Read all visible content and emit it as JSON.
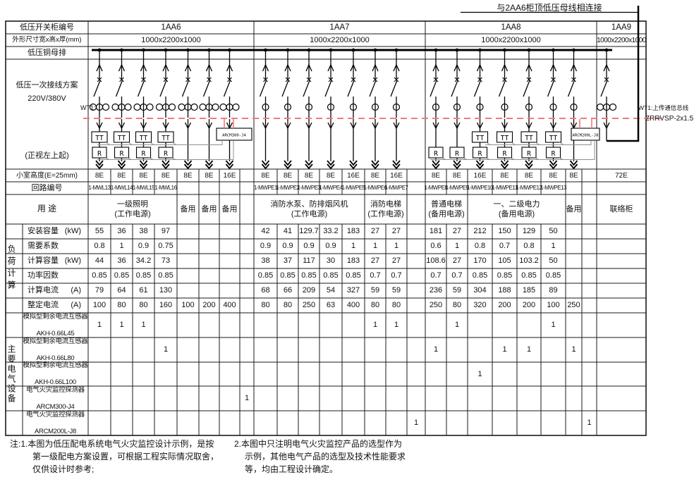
{
  "annotations": {
    "top_right": "与2AA6柜顶低压母线相连接",
    "wt1_left": "WT1:",
    "wt1_right_line1": "WT1:上传通信总线",
    "wt1_right_line2": "ZRRVSP-2x1.5"
  },
  "row_labels": {
    "cabinet_no": "低压开关柜编号",
    "dimensions": "外形尺寸宽x高x厚(mm)",
    "busbar": "低压铜母排",
    "scheme_line1": "低压一次接线方案",
    "scheme_line2": "220V/380V",
    "scheme_line3": "(正视左上起)",
    "cell_height": "小室高度(E=25mm)",
    "circuit_no": "回路编号",
    "purpose": "用  途",
    "load_group": "负荷计算",
    "equipment_group": "主要电气设备"
  },
  "symbols": {
    "tt": "TT",
    "r": "R"
  },
  "load_rows": [
    {
      "label": "安装容量",
      "unit": "(kW)"
    },
    {
      "label": "需要系数",
      "unit": ""
    },
    {
      "label": "计算容量",
      "unit": "(kW)"
    },
    {
      "label": "功率因数",
      "unit": ""
    },
    {
      "label": "计算电流",
      "unit": "(A)"
    },
    {
      "label": "整定电流",
      "unit": "(A)"
    }
  ],
  "equipment_rows": [
    {
      "name": "模拟型剩余电流互感器",
      "model": "AKH-0.66L45"
    },
    {
      "name": "模拟型剩余电流互感器",
      "model": "AKH-0.66L80"
    },
    {
      "name": "模拟型剩余电流互感器",
      "model": "AKH-0.66L100"
    },
    {
      "name": "电气火灾监控探测器",
      "model": "ARCM300-J4"
    },
    {
      "name": "电气火灾监控探测器",
      "model": "ARCM200L-J8"
    }
  ],
  "cabinets": [
    {
      "id": "1AA6",
      "size": "1000x2200x1000",
      "monitor_label": "ARCM300-J4",
      "purposes": [
        {
          "span": 4,
          "lines": [
            "一级照明",
            "(工作电源)"
          ]
        },
        {
          "span": 1,
          "lines": [
            "备用"
          ]
        },
        {
          "span": 1,
          "lines": [
            "备用"
          ]
        },
        {
          "span": 1,
          "lines": [
            "备用"
          ]
        }
      ],
      "circuits": [
        {
          "h": "8E",
          "no": "1-MWL13",
          "sym": "ct3-ttr",
          "vals": [
            "55",
            "0.8",
            "44",
            "0.85",
            "79",
            "100"
          ],
          "marks": [
            1,
            0,
            0,
            0,
            0
          ]
        },
        {
          "h": "8E",
          "no": "1-MWL14",
          "sym": "ct3-ttr",
          "vals": [
            "36",
            "1",
            "36",
            "0.85",
            "64",
            "80"
          ],
          "marks": [
            1,
            0,
            0,
            0,
            0
          ]
        },
        {
          "h": "8E",
          "no": "1-MWL15",
          "sym": "ct3-ttr",
          "vals": [
            "38",
            "0.9",
            "34.2",
            "0.85",
            "61",
            "80"
          ],
          "marks": [
            1,
            0,
            0,
            0,
            0
          ]
        },
        {
          "h": "8E",
          "no": "1-MWL16",
          "sym": "ct3-ttr",
          "vals": [
            "97",
            "0.75",
            "73",
            "0.85",
            "130",
            "160"
          ],
          "marks": [
            0,
            1,
            0,
            0,
            0
          ]
        },
        {
          "h": "8E",
          "no": "",
          "sym": "ct3",
          "vals": [
            "",
            "",
            "",
            "",
            "",
            "100"
          ],
          "marks": [
            0,
            0,
            0,
            0,
            0
          ]
        },
        {
          "h": "8E",
          "no": "",
          "sym": "ct3",
          "vals": [
            "",
            "",
            "",
            "",
            "",
            "200"
          ],
          "marks": [
            0,
            0,
            0,
            0,
            0
          ]
        },
        {
          "h": "16E",
          "no": "",
          "sym": "ct3",
          "vals": [
            "",
            "",
            "",
            "",
            "",
            "400"
          ],
          "marks": [
            0,
            0,
            0,
            0,
            0
          ]
        }
      ],
      "end_marks": [
        0,
        0,
        0,
        1,
        0
      ]
    },
    {
      "id": "1AA7",
      "size": "1000x2200x1000",
      "monitor_label": "",
      "purposes": [
        {
          "span": 5,
          "lines": [
            "消防水泵、防排烟风机",
            "(工作电源)"
          ]
        },
        {
          "span": 2,
          "lines": [
            "消防电梯",
            "(工作电源)"
          ]
        }
      ],
      "circuits": [
        {
          "h": "8E",
          "no": "1-MWPE1",
          "sym": "plain",
          "vals": [
            "42",
            "0.9",
            "38",
            "0.85",
            "68",
            "80"
          ],
          "marks": [
            0,
            0,
            0,
            0,
            0
          ]
        },
        {
          "h": "8E",
          "no": "1-MWPE2",
          "sym": "plain",
          "vals": [
            "41",
            "0.9",
            "37",
            "0.85",
            "66",
            "80"
          ],
          "marks": [
            0,
            0,
            0,
            0,
            0
          ]
        },
        {
          "h": "8E",
          "no": "1-MWPE3",
          "sym": "plain",
          "vals": [
            "129.7",
            "0.9",
            "117",
            "0.85",
            "209",
            "250"
          ],
          "marks": [
            0,
            0,
            0,
            0,
            0
          ]
        },
        {
          "h": "8E",
          "no": "1-MWPE4",
          "sym": "plain",
          "vals": [
            "33.2",
            "0.9",
            "30",
            "0.85",
            "54",
            "63"
          ],
          "marks": [
            0,
            0,
            0,
            0,
            0
          ]
        },
        {
          "h": "16E",
          "no": "1-MWPE5",
          "sym": "plain",
          "vals": [
            "183",
            "1",
            "183",
            "0.85",
            "327",
            "400"
          ],
          "marks": [
            0,
            0,
            0,
            0,
            0
          ]
        },
        {
          "h": "8E",
          "no": "1-MWPE6",
          "sym": "plain",
          "vals": [
            "27",
            "1",
            "27",
            "0.7",
            "59",
            "80"
          ],
          "marks": [
            1,
            0,
            0,
            0,
            0
          ]
        },
        {
          "h": "16E",
          "no": "1-MWPE7",
          "sym": "plain",
          "vals": [
            "27",
            "1",
            "27",
            "0.7",
            "59",
            "80"
          ],
          "marks": [
            1,
            0,
            0,
            0,
            0
          ]
        }
      ],
      "end_marks": [
        0,
        0,
        0,
        0,
        1
      ]
    },
    {
      "id": "1AA8",
      "size": "1000x2200x1000",
      "monitor_label": "ARCM200L-J8",
      "purposes": [
        {
          "span": 2,
          "lines": [
            "普通电梯",
            "(备用电源)"
          ]
        },
        {
          "span": 4,
          "lines": [
            "一、二级电力",
            "(备用电源)"
          ]
        },
        {
          "span": 1,
          "lines": [
            "备用"
          ]
        }
      ],
      "circuits": [
        {
          "h": "8E",
          "no": "1-MWPE8",
          "sym": "ct1-r",
          "vals": [
            "181",
            "0.6",
            "108.6",
            "0.7",
            "236",
            "250"
          ],
          "marks": [
            0,
            1,
            0,
            0,
            0
          ]
        },
        {
          "h": "8E",
          "no": "1-MWPE9",
          "sym": "ct1-r",
          "vals": [
            "27",
            "1",
            "27",
            "0.7",
            "59",
            "80"
          ],
          "marks": [
            1,
            0,
            0,
            0,
            0
          ]
        },
        {
          "h": "16E",
          "no": "1-MWPE10",
          "sym": "ct1-ttr",
          "vals": [
            "212",
            "0.8",
            "170",
            "0.85",
            "304",
            "320"
          ],
          "marks": [
            0,
            0,
            1,
            0,
            0
          ]
        },
        {
          "h": "8E",
          "no": "1-MWPE11",
          "sym": "ct1-ttr",
          "vals": [
            "150",
            "0.7",
            "105",
            "0.85",
            "188",
            "200"
          ],
          "marks": [
            0,
            1,
            0,
            0,
            0
          ]
        },
        {
          "h": "8E",
          "no": "1-MWPE12",
          "sym": "ct1-ttr",
          "vals": [
            "129",
            "0.8",
            "103.2",
            "0.85",
            "185",
            "200"
          ],
          "marks": [
            0,
            1,
            0,
            0,
            0
          ]
        },
        {
          "h": "8E",
          "no": "1-MWPE13",
          "sym": "ct1-ttr",
          "vals": [
            "50",
            "1",
            "50",
            "0.85",
            "89",
            "100"
          ],
          "marks": [
            1,
            0,
            0,
            0,
            0
          ]
        },
        {
          "h": "8E",
          "no": "",
          "sym": "plain",
          "vals": [
            "",
            "",
            "",
            "",
            "",
            "250"
          ],
          "marks": [
            0,
            1,
            0,
            0,
            0
          ]
        }
      ],
      "end_marks": [
        0,
        0,
        0,
        0,
        1
      ]
    },
    {
      "id": "1AA9",
      "size": "1000x2200x1000",
      "monitor_label": "",
      "purposes": [
        {
          "span": 1,
          "lines": [
            "联络柜"
          ]
        }
      ],
      "circuits": [
        {
          "h": "72E",
          "no": "",
          "sym": "tie",
          "vals": [
            "",
            "",
            "",
            "",
            "",
            ""
          ],
          "marks": [
            0,
            0,
            0,
            0,
            0
          ]
        }
      ],
      "end_marks": null
    }
  ],
  "notes": {
    "n1": [
      "注:1.本图为低压配电系统电气火灾监控设计示例，是按",
      "第一级配电方案设置，可根据工程实际情况取舍，",
      "仅供设计时参考;"
    ],
    "n2": [
      "2.本图中只注明电气火灾监控产品的选型作为",
      "示例，其他电气产品的选型及技术性能要求",
      "等，均由工程设计确定。"
    ]
  },
  "colors": {
    "line": "#1a1a1a",
    "red_dashed": "#f27b7b",
    "routing": "#8f8f8f"
  }
}
